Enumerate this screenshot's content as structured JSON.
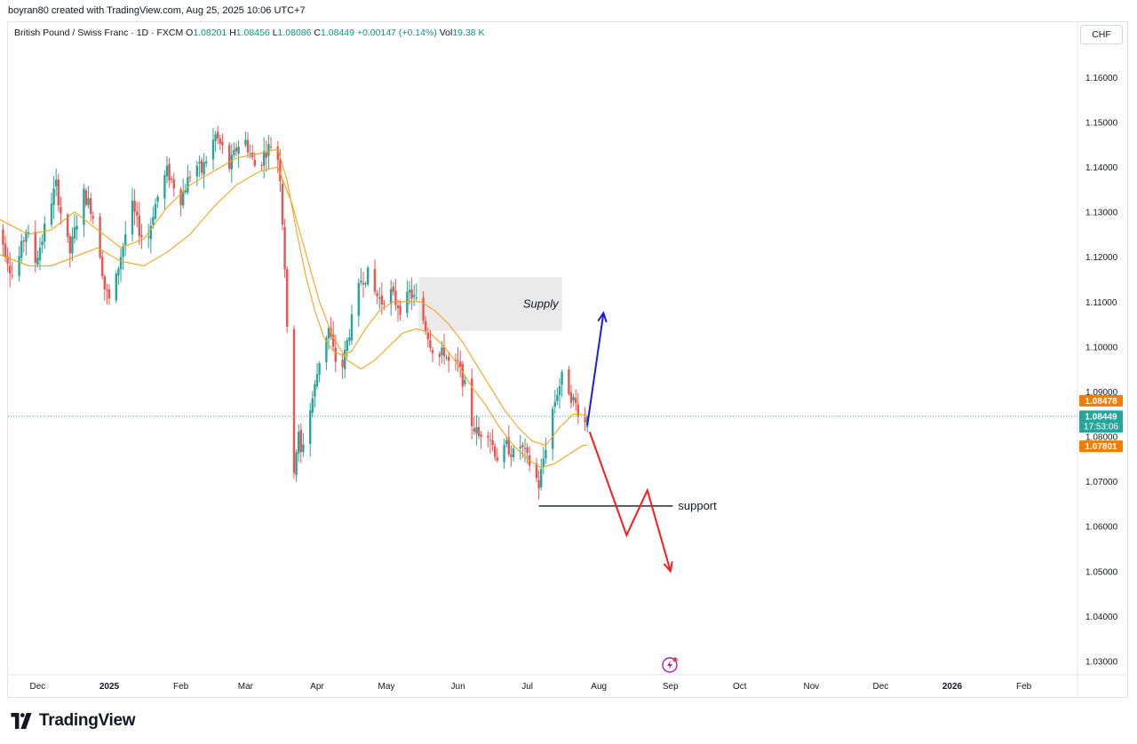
{
  "caption": "boyran80 created with TradingView.com, Aug 25, 2025 10:06 UTC+7",
  "legend": {
    "symbol": "British Pound / Swiss Franc · 1D · FXCM",
    "o_label": "O",
    "o_value": "1.08201",
    "h_label": "H",
    "h_value": "1.08456",
    "l_label": "L",
    "l_value": "1.08086",
    "c_label": "C",
    "c_value": "1.08449",
    "change": "+0.00147 (+0.14%)",
    "vol_label": "Vol",
    "vol_value": "19.38 K"
  },
  "currency_button": "CHF",
  "brand": {
    "name": "TradingView"
  },
  "chart_data": {
    "type": "candlestick",
    "title": "British Pound / Swiss Franc · 1D · FXCM",
    "ylim": [
      1.025,
      1.17
    ],
    "y_ticks": [
      "1.16000",
      "1.15000",
      "1.14000",
      "1.13000",
      "1.12000",
      "1.11000",
      "1.10000",
      "1.09000",
      "1.08000",
      "1.07000",
      "1.06000",
      "1.05000",
      "1.04000",
      "1.03000"
    ],
    "y_tick_values": [
      1.16,
      1.15,
      1.14,
      1.13,
      1.12,
      1.11,
      1.1,
      1.09,
      1.08,
      1.07,
      1.06,
      1.05,
      1.04,
      1.03
    ],
    "x_ticks": [
      "Dec",
      "2025",
      "Feb",
      "Mar",
      "Apr",
      "May",
      "Jun",
      "Jul",
      "Aug",
      "Sep",
      "Oct",
      "Nov",
      "Dec",
      "2026",
      "Feb"
    ],
    "x_tick_days": [
      -6,
      25,
      56,
      84,
      115,
      145,
      176,
      206,
      237,
      268,
      298,
      329,
      359,
      390,
      421
    ],
    "price_labels": {
      "ma_fast": "1.08478",
      "last": "1.08449",
      "countdown": "17:53:06",
      "ma_slow": "1.07801"
    },
    "last_price": 1.08449,
    "ma_fast_value": 1.08478,
    "ma_slow_value": 1.07801,
    "anchors": [
      [
        -25,
        1.127
      ],
      [
        -21,
        1.123
      ],
      [
        -17,
        1.116
      ],
      [
        -14,
        1.12
      ],
      [
        -11,
        1.126
      ],
      [
        -7,
        1.119
      ],
      [
        -4,
        1.124
      ],
      [
        -1,
        1.131
      ],
      [
        2,
        1.136
      ],
      [
        5,
        1.127
      ],
      [
        8,
        1.121
      ],
      [
        11,
        1.128
      ],
      [
        14,
        1.134
      ],
      [
        17,
        1.131
      ],
      [
        20,
        1.125
      ],
      [
        23,
        1.113
      ],
      [
        26,
        1.109
      ],
      [
        29,
        1.118
      ],
      [
        32,
        1.125
      ],
      [
        35,
        1.131
      ],
      [
        38,
        1.126
      ],
      [
        41,
        1.122
      ],
      [
        44,
        1.13
      ],
      [
        47,
        1.135
      ],
      [
        50,
        1.139
      ],
      [
        53,
        1.136
      ],
      [
        56,
        1.133
      ],
      [
        59,
        1.137
      ],
      [
        62,
        1.141
      ],
      [
        65,
        1.139
      ],
      [
        68,
        1.143
      ],
      [
        71,
        1.147
      ],
      [
        74,
        1.144
      ],
      [
        77,
        1.14
      ],
      [
        80,
        1.144
      ],
      [
        83,
        1.147
      ],
      [
        86,
        1.143
      ],
      [
        89,
        1.139
      ],
      [
        92,
        1.143
      ],
      [
        95,
        1.145
      ],
      [
        98,
        1.142
      ],
      [
        99,
        1.138
      ],
      [
        100,
        1.128
      ],
      [
        101,
        1.118
      ],
      [
        102,
        1.103
      ],
      [
        103,
        1.089
      ],
      [
        104,
        1.078
      ],
      [
        105,
        1.073
      ],
      [
        106,
        1.077
      ],
      [
        107,
        1.08
      ],
      [
        108,
        1.076
      ],
      [
        110,
        1.082
      ],
      [
        112,
        1.086
      ],
      [
        114,
        1.091
      ],
      [
        116,
        1.097
      ],
      [
        118,
        1.101
      ],
      [
        120,
        1.104
      ],
      [
        122,
        1.099
      ],
      [
        125,
        1.093
      ],
      [
        128,
        1.101
      ],
      [
        131,
        1.108
      ],
      [
        134,
        1.115
      ],
      [
        137,
        1.116
      ],
      [
        140,
        1.112
      ],
      [
        143,
        1.11
      ],
      [
        146,
        1.113
      ],
      [
        149,
        1.11
      ],
      [
        152,
        1.108
      ],
      [
        155,
        1.112
      ],
      [
        158,
        1.11
      ],
      [
        161,
        1.106
      ],
      [
        164,
        1.101
      ],
      [
        167,
        1.097
      ],
      [
        170,
        1.099
      ],
      [
        173,
        1.095
      ],
      [
        176,
        1.096
      ],
      [
        179,
        1.091
      ],
      [
        182,
        1.083
      ],
      [
        185,
        1.08
      ],
      [
        188,
        1.083
      ],
      [
        191,
        1.078
      ],
      [
        194,
        1.074
      ],
      [
        197,
        1.078
      ],
      [
        200,
        1.076
      ],
      [
        203,
        1.078
      ],
      [
        206,
        1.075
      ],
      [
        209,
        1.072
      ],
      [
        211,
        1.069
      ],
      [
        213,
        1.075
      ],
      [
        215,
        1.081
      ],
      [
        217,
        1.086
      ],
      [
        219,
        1.09
      ],
      [
        221,
        1.093
      ],
      [
        223,
        1.092
      ],
      [
        225,
        1.089
      ],
      [
        227,
        1.087
      ],
      [
        229,
        1.085
      ],
      [
        231,
        1.083
      ],
      [
        232,
        1.0845
      ]
    ],
    "ma_fast": [
      [
        -25,
        1.129
      ],
      [
        -10,
        1.125
      ],
      [
        0,
        1.126
      ],
      [
        10,
        1.13
      ],
      [
        20,
        1.126
      ],
      [
        30,
        1.122
      ],
      [
        40,
        1.124
      ],
      [
        50,
        1.131
      ],
      [
        60,
        1.136
      ],
      [
        70,
        1.139
      ],
      [
        80,
        1.142
      ],
      [
        90,
        1.143
      ],
      [
        98,
        1.144
      ],
      [
        102,
        1.137
      ],
      [
        106,
        1.126
      ],
      [
        110,
        1.116
      ],
      [
        114,
        1.108
      ],
      [
        118,
        1.102
      ],
      [
        122,
        1.099
      ],
      [
        126,
        1.098
      ],
      [
        130,
        1.099
      ],
      [
        136,
        1.104
      ],
      [
        142,
        1.108
      ],
      [
        148,
        1.11
      ],
      [
        154,
        1.11
      ],
      [
        160,
        1.11
      ],
      [
        166,
        1.108
      ],
      [
        172,
        1.105
      ],
      [
        178,
        1.101
      ],
      [
        184,
        1.096
      ],
      [
        190,
        1.091
      ],
      [
        196,
        1.086
      ],
      [
        202,
        1.082
      ],
      [
        208,
        1.079
      ],
      [
        214,
        1.078
      ],
      [
        220,
        1.082
      ],
      [
        226,
        1.085
      ],
      [
        232,
        1.0848
      ]
    ],
    "ma_slow": [
      [
        -25,
        1.121
      ],
      [
        -10,
        1.118
      ],
      [
        0,
        1.118
      ],
      [
        10,
        1.12
      ],
      [
        20,
        1.122
      ],
      [
        30,
        1.119
      ],
      [
        40,
        1.118
      ],
      [
        50,
        1.121
      ],
      [
        60,
        1.125
      ],
      [
        70,
        1.131
      ],
      [
        80,
        1.136
      ],
      [
        90,
        1.139
      ],
      [
        98,
        1.14
      ],
      [
        104,
        1.132
      ],
      [
        110,
        1.121
      ],
      [
        116,
        1.11
      ],
      [
        122,
        1.102
      ],
      [
        128,
        1.097
      ],
      [
        134,
        1.095
      ],
      [
        140,
        1.097
      ],
      [
        146,
        1.1
      ],
      [
        152,
        1.103
      ],
      [
        158,
        1.104
      ],
      [
        164,
        1.103
      ],
      [
        170,
        1.1
      ],
      [
        176,
        1.096
      ],
      [
        182,
        1.091
      ],
      [
        188,
        1.087
      ],
      [
        194,
        1.082
      ],
      [
        200,
        1.078
      ],
      [
        206,
        1.075
      ],
      [
        212,
        1.073
      ],
      [
        218,
        1.074
      ],
      [
        224,
        1.076
      ],
      [
        230,
        1.078
      ],
      [
        232,
        1.078
      ]
    ],
    "annotations": {
      "supply_label": "Supply",
      "supply_zone": {
        "day_start": 159,
        "day_end": 221,
        "price_low": 1.1035,
        "price_high": 1.1155
      },
      "support_label": "support",
      "support_line": {
        "day_start": 211,
        "day_end": 269,
        "price": 1.0645
      },
      "bullish_path": [
        [
          232,
          1.0825
        ],
        [
          239,
          1.1075
        ]
      ],
      "bearish_path": [
        [
          233,
          1.081
        ],
        [
          249,
          1.058
        ],
        [
          258,
          1.068
        ],
        [
          268,
          1.05
        ]
      ]
    },
    "up_color": "#26a69a",
    "down_color": "#ef5350",
    "ma_color": "#f7a21b",
    "bull_arrow_color": "#1a1fd6",
    "bear_arrow_color": "#ff1a1a"
  }
}
